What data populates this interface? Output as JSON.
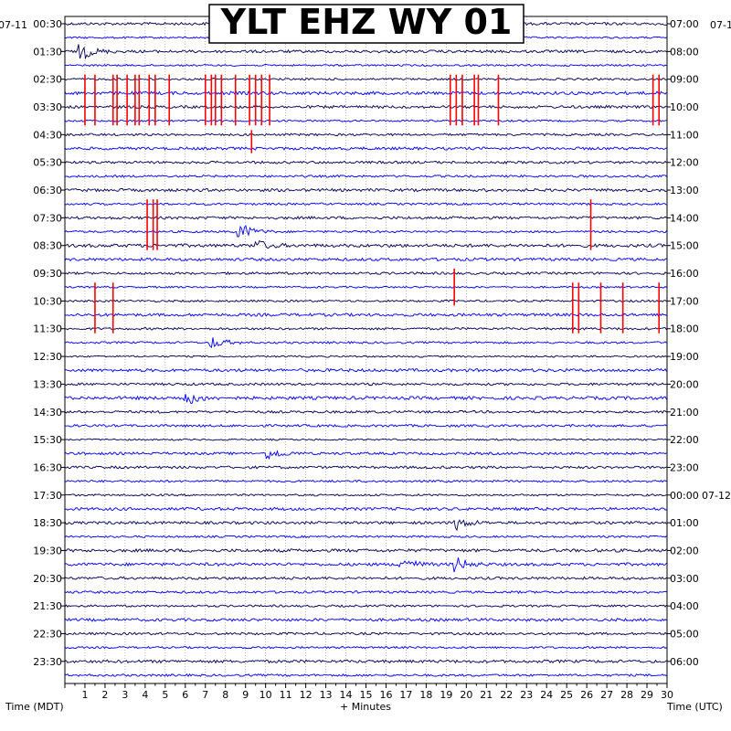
{
  "chart_data": {
    "type": "line",
    "title": "YLT EHZ WY 01",
    "xlabel": "+ Minutes",
    "ylabel_left": "Time (MDT)",
    "ylabel_right": "Time (UTC)",
    "date_left": "07-11",
    "date_right": "07-1",
    "date_right_mid": "07-12",
    "xlim": [
      0,
      30
    ],
    "x_ticks": [
      "1",
      "2",
      "3",
      "4",
      "5",
      "6",
      "7",
      "8",
      "9",
      "10",
      "11",
      "12",
      "13",
      "14",
      "15",
      "16",
      "17",
      "18",
      "19",
      "20",
      "21",
      "22",
      "23",
      "24",
      "25",
      "26",
      "27",
      "28",
      "29",
      "30"
    ],
    "left_times": [
      "00:30",
      "01:30",
      "02:30",
      "03:30",
      "04:30",
      "05:30",
      "06:30",
      "07:30",
      "08:30",
      "09:30",
      "10:30",
      "11:30",
      "12:30",
      "13:30",
      "14:30",
      "15:30",
      "16:30",
      "17:30",
      "18:30",
      "19:30",
      "20:30",
      "21:30",
      "22:30",
      "23:30"
    ],
    "right_times": [
      "07:00",
      "08:00",
      "09:00",
      "10:00",
      "11:00",
      "12:00",
      "13:00",
      "14:00",
      "15:00",
      "16:00",
      "17:00",
      "18:00",
      "19:00",
      "20:00",
      "21:00",
      "22:00",
      "23:00",
      "00:00",
      "01:00",
      "02:00",
      "03:00",
      "04:00",
      "05:00",
      "06:00"
    ],
    "trace_count": 48,
    "trace_colors": [
      "#00005a",
      "#0000ff"
    ],
    "clip_color": "#ff0000",
    "grid": true,
    "events": [
      {
        "trace": 2,
        "minute": 0.8,
        "amp": 9
      },
      {
        "trace": 15,
        "minute": 8.7,
        "amp": 10
      },
      {
        "trace": 16,
        "minute": 9.5,
        "amp": 6
      },
      {
        "trace": 23,
        "minute": 7.4,
        "amp": 6
      },
      {
        "trace": 27,
        "minute": 6.0,
        "amp": 8
      },
      {
        "trace": 31,
        "minute": 10.2,
        "amp": 6
      },
      {
        "trace": 36,
        "minute": 19.5,
        "amp": 7
      },
      {
        "trace": 39,
        "minute": 16.8,
        "amp": 8
      },
      {
        "trace": 39,
        "minute": 19.4,
        "amp": 9
      }
    ],
    "clipped": [
      {
        "start": 4,
        "end": 7,
        "minutes": [
          1.0,
          1.5,
          2.4,
          2.6,
          3.1,
          3.5,
          3.7,
          4.2,
          4.5,
          5.2,
          7.0,
          7.3,
          7.5,
          7.8,
          8.5,
          9.2,
          9.5,
          9.8,
          10.2,
          19.2,
          19.5,
          19.8,
          20.4,
          20.6,
          21.6,
          29.3,
          29.6
        ]
      },
      {
        "start": 8,
        "end": 9,
        "minutes": [
          9.3
        ]
      },
      {
        "start": 13,
        "end": 16,
        "minutes": [
          4.1,
          4.4,
          4.6,
          26.2
        ]
      },
      {
        "start": 18,
        "end": 20,
        "minutes": [
          19.4
        ]
      },
      {
        "start": 19,
        "end": 22,
        "minutes": [
          1.5,
          2.4,
          25.3,
          25.6,
          26.7,
          27.8,
          29.6
        ]
      }
    ]
  }
}
